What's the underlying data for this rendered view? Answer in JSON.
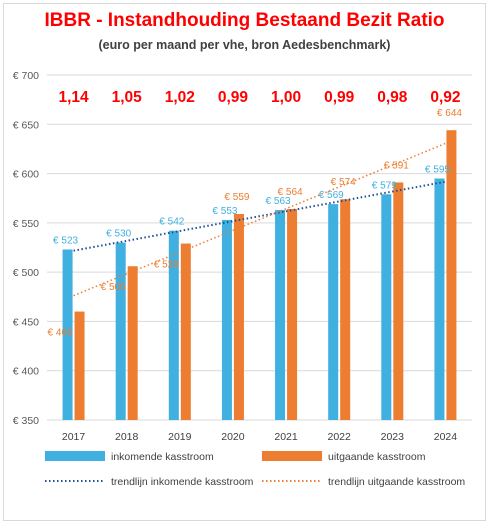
{
  "title": "IBBR - Instandhouding Bestaand Bezit Ratio",
  "subtitle": "(euro per maand per vhe, bron Aedesbenchmark)",
  "colors": {
    "inkomend": "#3fb0e0",
    "uitgaand": "#ed7d31",
    "ratio": "#ff0000",
    "trend_inkomend": "#1f4e99",
    "trend_uitgaand": "#ed7d31"
  },
  "chart_data": {
    "type": "bar",
    "categories": [
      "2017",
      "2018",
      "2019",
      "2020",
      "2021",
      "2022",
      "2023",
      "2024"
    ],
    "series": [
      {
        "name": "inkomende kasstroom",
        "values": [
          523,
          530,
          542,
          553,
          563,
          569,
          579,
          595
        ],
        "labels": [
          "€ 523",
          "€ 530",
          "€ 542",
          "€ 553",
          "€ 563",
          "€ 569",
          "€ 579",
          "€ 595"
        ]
      },
      {
        "name": "uitgaande kasstroom",
        "values": [
          460,
          506,
          529,
          559,
          564,
          574,
          591,
          644
        ],
        "labels": [
          "€ 460",
          "€ 506",
          "€ 529",
          "€ 559",
          "€ 564",
          "€ 574",
          "€ 591",
          "€ 644"
        ]
      }
    ],
    "trendlines": [
      {
        "name": "trendlijn inkomende kasstroom",
        "style": "dotted",
        "for": "inkomende kasstroom"
      },
      {
        "name": "trendlijn uitgaande kasstroom",
        "style": "dotted",
        "for": "uitgaande kasstroom"
      }
    ],
    "ratios": [
      "1,14",
      "1,05",
      "1,02",
      "0,99",
      "1,00",
      "0,99",
      "0,98",
      "0,92"
    ],
    "ylim": [
      350,
      700
    ],
    "yticks": [
      350,
      400,
      450,
      500,
      550,
      600,
      650,
      700
    ],
    "ytick_labels": [
      "€ 350",
      "€ 400",
      "€ 450",
      "€ 500",
      "€ 550",
      "€ 600",
      "€ 650",
      "€ 700"
    ],
    "grid": true,
    "legend_position": "bottom"
  }
}
